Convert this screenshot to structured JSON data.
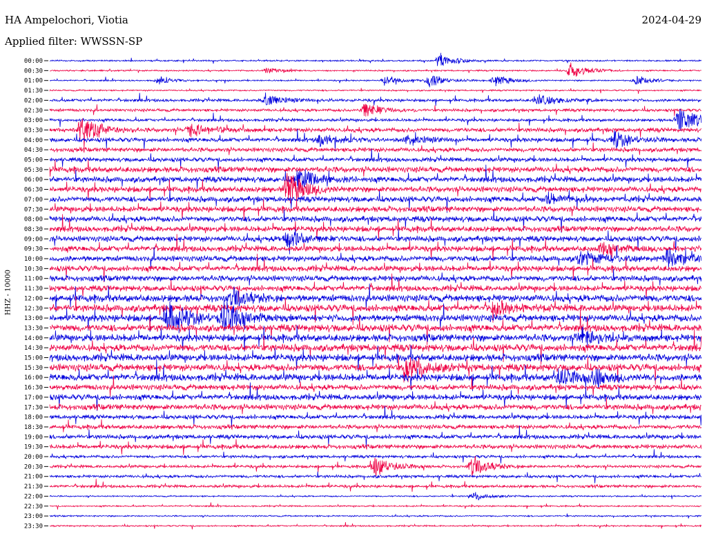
{
  "header": {
    "station": "HA Ampelochori, Viotia",
    "date": "2024-04-29",
    "filter": "Applied filter: WWSSN-SP"
  },
  "chart_data": {
    "type": "line",
    "ylabel": "HHZ - 10000",
    "colors": [
      "#0000dd",
      "#ee0044"
    ],
    "tick_labels": [
      "00:00",
      "00:30",
      "01:00",
      "01:30",
      "02:00",
      "02:30",
      "03:00",
      "03:30",
      "04:00",
      "04:30",
      "05:00",
      "05:30",
      "06:00",
      "06:30",
      "07:00",
      "07:30",
      "08:00",
      "08:30",
      "09:00",
      "09:30",
      "10:00",
      "10:30",
      "11:00",
      "11:30",
      "12:00",
      "12:30",
      "13:00",
      "13:30",
      "14:00",
      "14:30",
      "15:00",
      "15:30",
      "16:00",
      "16:30",
      "17:00",
      "17:30",
      "18:00",
      "18:30",
      "19:00",
      "19:30",
      "20:00",
      "20:30",
      "21:00",
      "21:30",
      "22:00",
      "22:30",
      "23:00",
      "23:30"
    ],
    "noise_level": [
      1,
      1,
      1,
      1,
      2,
      2,
      2,
      3,
      3,
      3,
      3,
      4,
      4,
      4,
      4,
      4,
      4,
      4,
      4,
      4,
      4,
      4,
      4,
      4,
      5,
      5,
      5,
      5,
      5,
      5,
      5,
      5,
      5,
      4,
      4,
      4,
      3,
      3,
      3,
      3,
      2,
      2,
      2,
      2,
      1,
      1,
      1,
      1
    ],
    "events": [
      {
        "trace": 0,
        "minute": 18.0,
        "amp": 12
      },
      {
        "trace": 1,
        "minute": 24.0,
        "amp": 14
      },
      {
        "trace": 1,
        "minute": 10.0,
        "amp": 5
      },
      {
        "trace": 2,
        "minute": 5.0,
        "amp": 6
      },
      {
        "trace": 2,
        "minute": 15.5,
        "amp": 7
      },
      {
        "trace": 2,
        "minute": 17.5,
        "amp": 10
      },
      {
        "trace": 2,
        "minute": 20.5,
        "amp": 10
      },
      {
        "trace": 2,
        "minute": 27.0,
        "amp": 8
      },
      {
        "trace": 4,
        "minute": 10.0,
        "amp": 10
      },
      {
        "trace": 4,
        "minute": 22.5,
        "amp": 12
      },
      {
        "trace": 5,
        "minute": 14.5,
        "amp": 14
      },
      {
        "trace": 6,
        "minute": 29.0,
        "amp": 24
      },
      {
        "trace": 7,
        "minute": 1.5,
        "amp": 30
      },
      {
        "trace": 7,
        "minute": 6.5,
        "amp": 12
      },
      {
        "trace": 8,
        "minute": 12.5,
        "amp": 10
      },
      {
        "trace": 8,
        "minute": 16.5,
        "amp": 8
      },
      {
        "trace": 8,
        "minute": 26.0,
        "amp": 14
      },
      {
        "trace": 12,
        "minute": 11.5,
        "amp": 18
      },
      {
        "trace": 13,
        "minute": 11.0,
        "amp": 30
      },
      {
        "trace": 14,
        "minute": 23.0,
        "amp": 10
      },
      {
        "trace": 18,
        "minute": 11.0,
        "amp": 18
      },
      {
        "trace": 19,
        "minute": 25.5,
        "amp": 10
      },
      {
        "trace": 20,
        "minute": 24.5,
        "amp": 12
      },
      {
        "trace": 20,
        "minute": 28.5,
        "amp": 16
      },
      {
        "trace": 24,
        "minute": 8.5,
        "amp": 14
      },
      {
        "trace": 25,
        "minute": 20.5,
        "amp": 12
      },
      {
        "trace": 26,
        "minute": 5.5,
        "amp": 30
      },
      {
        "trace": 26,
        "minute": 8.0,
        "amp": 30
      },
      {
        "trace": 28,
        "minute": 24.5,
        "amp": 12
      },
      {
        "trace": 31,
        "minute": 16.5,
        "amp": 24
      },
      {
        "trace": 32,
        "minute": 23.5,
        "amp": 14
      },
      {
        "trace": 32,
        "minute": 25.0,
        "amp": 14
      },
      {
        "trace": 41,
        "minute": 15.0,
        "amp": 18
      },
      {
        "trace": 41,
        "minute": 19.5,
        "amp": 16
      },
      {
        "trace": 44,
        "minute": 19.5,
        "amp": 7
      }
    ]
  }
}
